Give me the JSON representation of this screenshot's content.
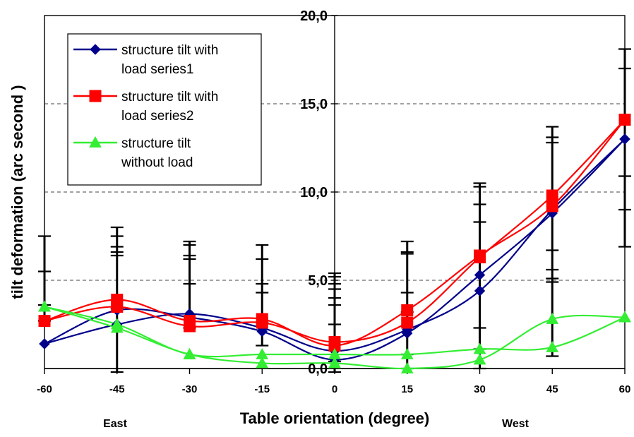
{
  "chart_data": {
    "type": "line",
    "xlabel": "Table orientation (degree)",
    "ylabel": "tilt deformation (arc second )",
    "x": [
      -60,
      -45,
      -30,
      -15,
      0,
      15,
      30,
      45,
      60
    ],
    "x_tick_labels": [
      "-60",
      "-45",
      "-30",
      "-15",
      "0",
      "15",
      "30",
      "45",
      "60"
    ],
    "y_tick_labels": [
      "0,0",
      "5,0",
      "10,0",
      "15,0",
      "20,0"
    ],
    "y_ticks": [
      0,
      5,
      10,
      15,
      20
    ],
    "xlim": [
      -60,
      60
    ],
    "ylim": [
      0,
      20
    ],
    "grid": "horizontal dashed",
    "legend_position": "top-left",
    "direction_labels": {
      "left": "East",
      "right": "West"
    },
    "series": [
      {
        "name_lines": [
          "structure tilt with",
          "load series1"
        ],
        "color": "#00008B",
        "marker": "diamond",
        "runs": [
          [
            1.4,
            2.5,
            3.1,
            2.3,
            1.0,
            2.2,
            4.4,
            9.0,
            13.0
          ],
          [
            1.4,
            3.3,
            2.9,
            2.1,
            0.5,
            2.0,
            5.3,
            8.8,
            13.0
          ]
        ]
      },
      {
        "name_lines": [
          "structure tilt with",
          "load series2"
        ],
        "color": "#FF0000",
        "marker": "square",
        "runs": [
          [
            2.7,
            3.9,
            2.7,
            2.8,
            1.3,
            3.3,
            6.4,
            9.2,
            14.1
          ],
          [
            2.7,
            3.5,
            2.4,
            2.6,
            1.5,
            2.6,
            6.3,
            9.8,
            14.1
          ]
        ]
      },
      {
        "name_lines": [
          "structure tilt",
          "without load"
        ],
        "color": "#33EE33",
        "marker": "triangle",
        "runs": [
          [
            3.5,
            2.5,
            0.8,
            0.8,
            0.8,
            0.8,
            1.1,
            1.2,
            2.9
          ],
          [
            3.5,
            2.3,
            0.8,
            0.3,
            0.3,
            0.0,
            0.5,
            2.8,
            2.9
          ]
        ]
      }
    ],
    "error_bars": [
      {
        "x": -60,
        "ticks": [
          2.7,
          3.6,
          5.5,
          7.5
        ]
      },
      {
        "x": -45,
        "ticks": [
          -0.2,
          3.4,
          6.4,
          6.6,
          6.9,
          7.5,
          8.0
        ]
      },
      {
        "x": -30,
        "ticks": [
          2.3,
          4.8,
          6.2,
          6.4,
          7.0,
          7.2
        ]
      },
      {
        "x": -15,
        "ticks": [
          1.3,
          2.6,
          4.3,
          4.8,
          6.2,
          7.0
        ]
      },
      {
        "x": 0,
        "ticks": [
          -0.2,
          0.4,
          2.5,
          3.6,
          4.0,
          4.5,
          4.8,
          5.2,
          5.4
        ]
      },
      {
        "x": 15,
        "ticks": [
          0.0,
          0.8,
          3.2,
          4.3,
          6.5,
          6.6,
          7.2
        ]
      },
      {
        "x": 30,
        "ticks": [
          0.0,
          1.1,
          2.3,
          8.3,
          9.3,
          10.3,
          10.5
        ]
      },
      {
        "x": 45,
        "ticks": [
          0.7,
          4.9,
          5.1,
          5.6,
          6.7,
          12.8,
          13.1,
          13.7
        ]
      },
      {
        "x": 60,
        "ticks": [
          6.9,
          9.0,
          10.9,
          17.0,
          18.1
        ]
      }
    ]
  }
}
